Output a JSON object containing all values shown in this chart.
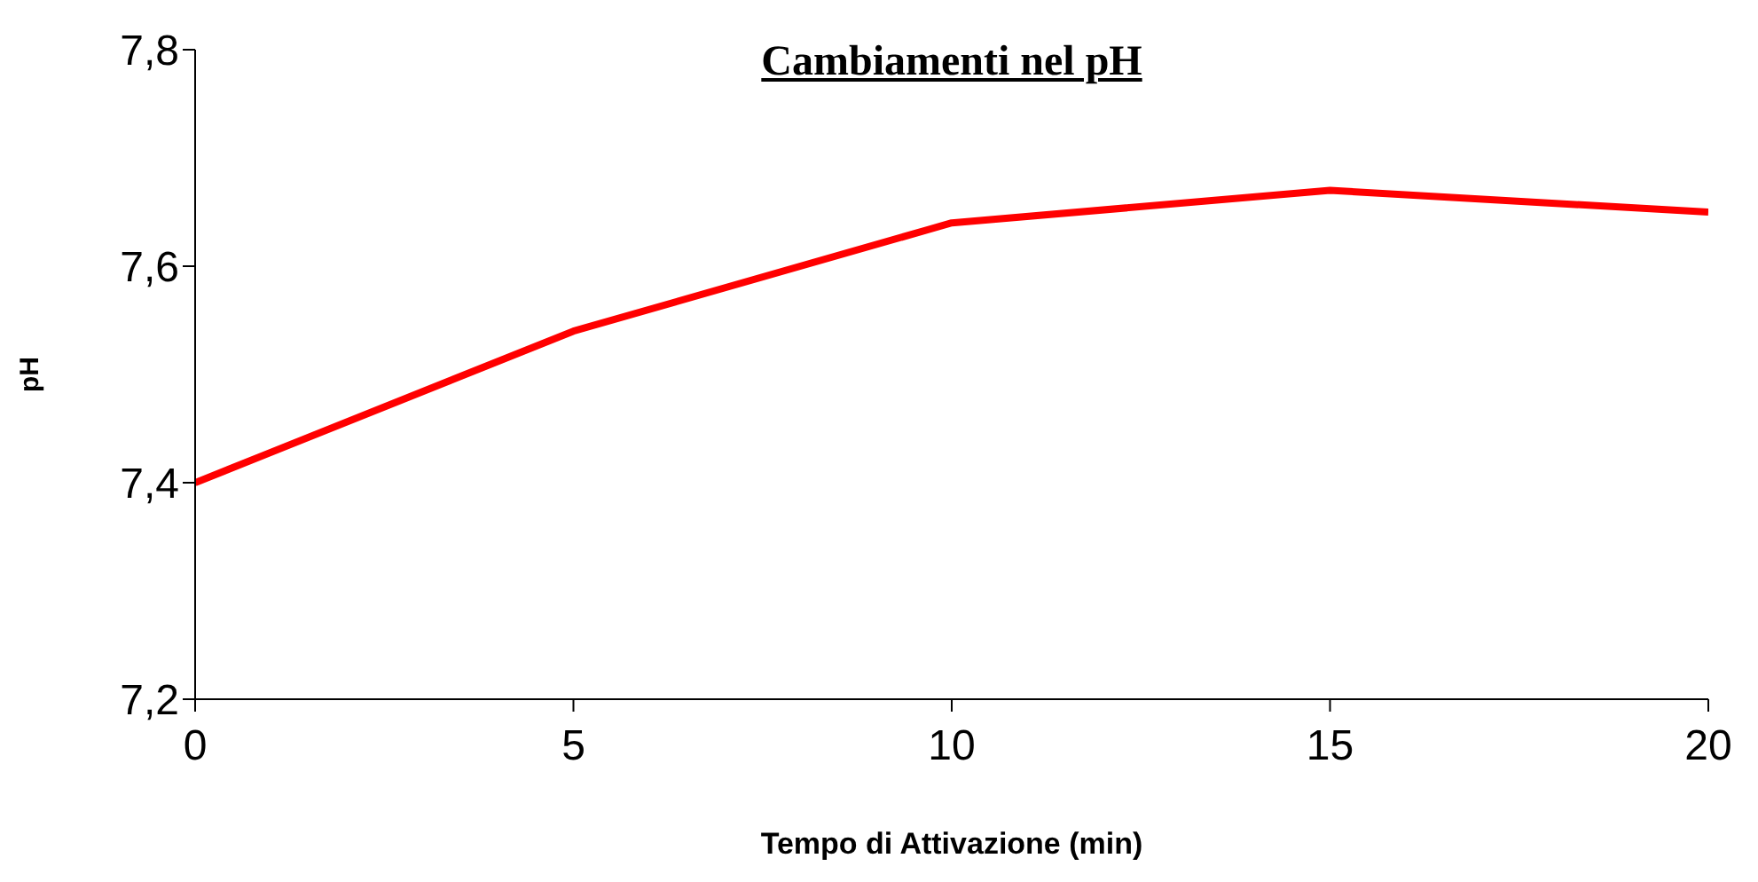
{
  "chart_data": {
    "type": "line",
    "title": "Cambiamenti nel pH",
    "xlabel": "Tempo di Attivazione (min)",
    "ylabel": "pH",
    "x": [
      0,
      5,
      10,
      15,
      20
    ],
    "series": [
      {
        "color": "#ff0000",
        "values": [
          7.4,
          7.54,
          7.64,
          7.67,
          7.65
        ]
      }
    ],
    "xlim": [
      0,
      20
    ],
    "xticks": [
      0,
      5,
      10,
      15,
      20
    ],
    "ylim": [
      7.2,
      7.8
    ],
    "yticks": [
      {
        "value": 7.2,
        "label": "7,2"
      },
      {
        "value": 7.4,
        "label": "7,4"
      },
      {
        "value": 7.6,
        "label": "7,6"
      },
      {
        "value": 7.8,
        "label": "7,8"
      }
    ],
    "grid": false,
    "legend": false,
    "marker": "none",
    "line_style": "solid"
  }
}
